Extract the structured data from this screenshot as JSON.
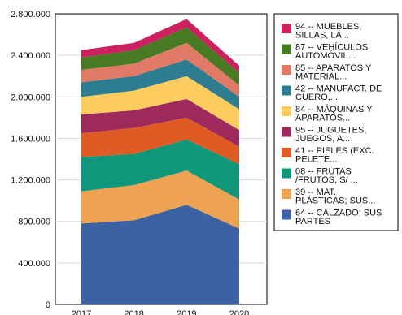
{
  "chart_data": {
    "type": "area",
    "stacked": true,
    "x": [
      "2017",
      "2018",
      "2019",
      "2020"
    ],
    "ylim": [
      0,
      2800000
    ],
    "yticks": [
      "0",
      "400.000",
      "800.000",
      "1.200.000",
      "1.600.000",
      "2.000.000",
      "2.400.000",
      "2.800.000"
    ],
    "grid": true,
    "legend_position": "right",
    "series": [
      {
        "name": "64 -- CALZADO; SUS PARTES",
        "color": "#3d62a3",
        "values": [
          780000,
          810000,
          960000,
          730000
        ]
      },
      {
        "name": "39 -- MAT. PLÁSTICAS; SUS...",
        "color": "#eda352",
        "values": [
          310000,
          340000,
          330000,
          280000
        ]
      },
      {
        "name": "08 -- FRUTAS /FRUTOS, S/ ...",
        "color": "#10967a",
        "values": [
          330000,
          300000,
          300000,
          340000
        ]
      },
      {
        "name": "41 -- PIELES (EXC. PELETE...",
        "color": "#e05a23",
        "values": [
          230000,
          250000,
          210000,
          170000
        ]
      },
      {
        "name": "95 -- JUGUETES, JUEGOS, A...",
        "color": "#9e2a5c",
        "values": [
          180000,
          170000,
          180000,
          160000
        ]
      },
      {
        "name": "84 -- MÁQUINAS Y APARATOS...",
        "color": "#fccd5e",
        "values": [
          170000,
          190000,
          220000,
          200000
        ]
      },
      {
        "name": "42 -- MANUFACT. DE CUERO,...",
        "color": "#2d7c90",
        "values": [
          140000,
          140000,
          160000,
          120000
        ]
      },
      {
        "name": "85 -- APARATOS Y MATERIAL...",
        "color": "#e07a66",
        "values": [
          120000,
          120000,
          160000,
          110000
        ]
      },
      {
        "name": "87 -- VEHÍCULOS AUTOMÓVIL...",
        "color": "#477a23",
        "values": [
          120000,
          130000,
          150000,
          120000
        ]
      },
      {
        "name": "94 -- MUEBLES, SILLAS, LÁ...",
        "color": "#cc2060",
        "values": [
          70000,
          70000,
          80000,
          70000
        ]
      }
    ],
    "legend_lines": [
      [
        "94 -- MUEBLES,",
        "SILLAS, LÁ..."
      ],
      [
        "87 -- VEHÍCULOS",
        "AUTOMÓVIL..."
      ],
      [
        "85 -- APARATOS Y",
        "MATERIAL..."
      ],
      [
        "42 -- MANUFACT. DE",
        "CUERO,..."
      ],
      [
        "84 -- MÁQUINAS Y",
        "APARATOS..."
      ],
      [
        "95 -- JUGUETES,",
        "JUEGOS, A..."
      ],
      [
        "41 -- PIELES (EXC.",
        "PELETE..."
      ],
      [
        "08 -- FRUTAS",
        "/FRUTOS, S/ ..."
      ],
      [
        "39 -- MAT.",
        "PLÁSTICAS; SUS..."
      ],
      [
        "64 -- CALZADO; SUS",
        "PARTES"
      ]
    ]
  }
}
